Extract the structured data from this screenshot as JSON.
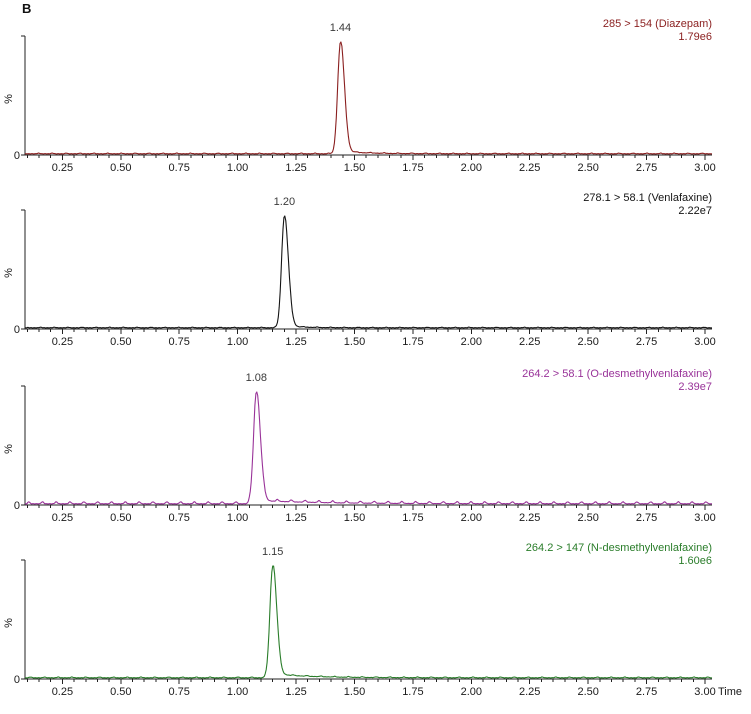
{
  "figure_label": "B",
  "axis": {
    "ylabel": "%",
    "origin_label": "0",
    "time_label": "Time",
    "xmin": 0.09,
    "xmax": 3.03,
    "xticks": [
      "0.25",
      "0.50",
      "0.75",
      "1.00",
      "1.25",
      "1.50",
      "1.75",
      "2.00",
      "2.25",
      "2.50",
      "2.75",
      "3.00"
    ]
  },
  "chart_data": [
    {
      "type": "line",
      "title": "285 > 154 (Diazepam)",
      "intensity": "1.79e6",
      "peak_time": 1.44,
      "peak_label": "1.44",
      "xlabel": "Time",
      "ylabel": "%",
      "xlim": [
        0.09,
        3.03
      ],
      "ylim": [
        0,
        100
      ],
      "color": "#8a1f1f"
    },
    {
      "type": "line",
      "title": "278.1 > 58.1 (Venlafaxine)",
      "intensity": "2.22e7",
      "peak_time": 1.2,
      "peak_label": "1.20",
      "xlabel": "Time",
      "ylabel": "%",
      "xlim": [
        0.09,
        3.03
      ],
      "ylim": [
        0,
        100
      ],
      "color": "#141414"
    },
    {
      "type": "line",
      "title": "264.2 > 58.1 (O-desmethylvenlafaxine)",
      "intensity": "2.39e7",
      "peak_time": 1.08,
      "peak_label": "1.08",
      "xlabel": "Time",
      "ylabel": "%",
      "xlim": [
        0.09,
        3.03
      ],
      "ylim": [
        0,
        100
      ],
      "color": "#993399"
    },
    {
      "type": "line",
      "title": "264.2 > 147 (N-desmethylvenlafaxine)",
      "intensity": "1.60e6",
      "peak_time": 1.15,
      "peak_label": "1.15",
      "xlabel": "Time",
      "ylabel": "%",
      "xlim": [
        0.09,
        3.03
      ],
      "ylim": [
        0,
        100
      ],
      "color": "#2a7d2a"
    }
  ]
}
